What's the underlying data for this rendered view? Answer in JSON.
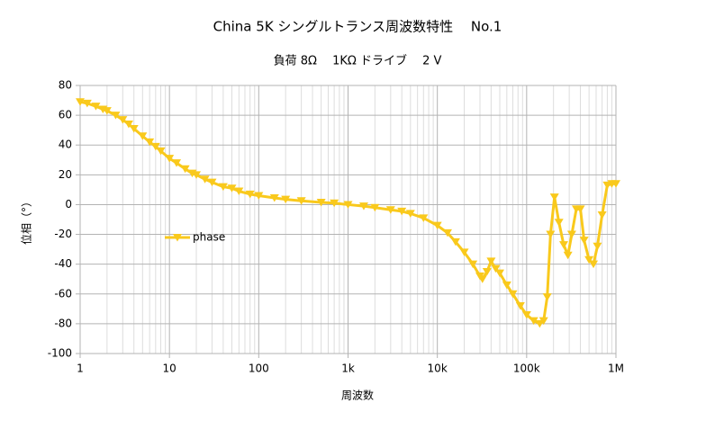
{
  "chart_data": {
    "type": "line",
    "title": "China 5K シングルトランス周波数特性　 No.1",
    "subtitle": "負荷 8Ω　 1KΩ ドライブ　 2 V",
    "x_label": "周波数",
    "y_label": "位相（°）",
    "x_log": true,
    "xlim": [
      1,
      1000000
    ],
    "xticks": [
      1,
      10,
      100,
      {
        "value": 1000,
        "label": "1k"
      },
      {
        "value": 10000,
        "label": "10k"
      },
      {
        "value": 100000,
        "label": "100k"
      },
      {
        "value": 1000000,
        "label": "1M"
      }
    ],
    "xminorticks": [
      2,
      3,
      4,
      5,
      6,
      7,
      8,
      9,
      20,
      30,
      40,
      50,
      60,
      70,
      80,
      90,
      200,
      300,
      400,
      500,
      600,
      700,
      800,
      900,
      2000,
      3000,
      4000,
      5000,
      6000,
      7000,
      8000,
      9000,
      20000,
      30000,
      40000,
      50000,
      60000,
      70000,
      80000,
      90000,
      200000,
      300000,
      400000,
      500000,
      600000,
      700000,
      800000,
      900000
    ],
    "ylim": [
      -100,
      80
    ],
    "yticks": [
      -100,
      -80,
      -60,
      -40,
      -20,
      0,
      20,
      40,
      60,
      80
    ],
    "grid": true,
    "legend": "middle-left",
    "series": [
      {
        "name": "phase",
        "color": "#f9c91c",
        "marker": "triangle-down",
        "x": [
          1,
          1.2,
          1.5,
          1.8,
          2,
          2.5,
          3,
          3.5,
          4,
          5,
          6,
          7,
          8,
          10,
          12,
          15,
          18,
          20,
          25,
          30,
          40,
          50,
          60,
          80,
          100,
          150,
          200,
          300,
          500,
          700,
          1000,
          1500,
          2000,
          3000,
          4000,
          5000,
          7000,
          10000,
          13000,
          16000,
          20000,
          25000,
          30000,
          32000,
          36000,
          40000,
          45000,
          50000,
          60000,
          70000,
          85000,
          100000,
          120000,
          140000,
          155000,
          170000,
          185000,
          205000,
          230000,
          260000,
          290000,
          320000,
          360000,
          400000,
          440000,
          500000,
          560000,
          620000,
          700000,
          800000,
          900000,
          1000000
        ],
        "values": [
          69,
          68,
          66,
          64,
          63,
          60,
          57,
          54,
          51,
          46,
          42,
          39,
          36,
          31,
          28,
          24,
          21,
          20,
          17,
          15,
          12,
          11,
          9,
          7,
          6,
          4.5,
          3.5,
          2.5,
          1.5,
          1,
          0,
          -1,
          -2,
          -3.5,
          -4.5,
          -6,
          -9,
          -14,
          -19,
          -25,
          -32,
          -40,
          -48,
          -50,
          -45,
          -38,
          -43,
          -46,
          -54,
          -60,
          -68,
          -74,
          -78,
          -80,
          -78,
          -62,
          -20,
          5,
          -12,
          -27,
          -34,
          -20,
          -3,
          -3,
          -24,
          -37,
          -40,
          -28,
          -7,
          13,
          14,
          14
        ]
      }
    ]
  }
}
